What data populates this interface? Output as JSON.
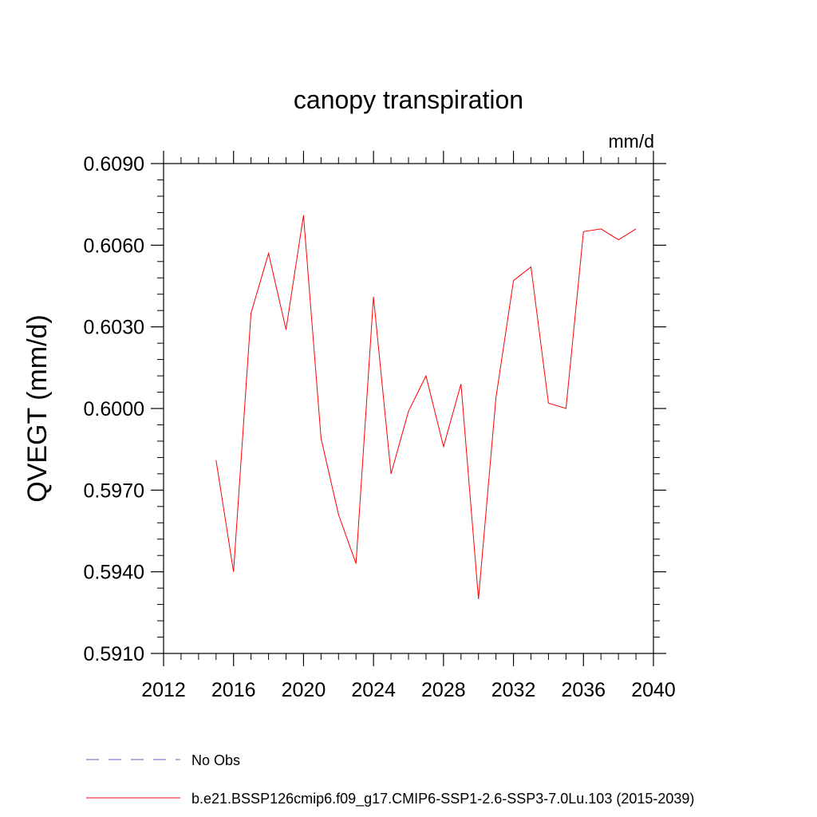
{
  "chart_data": {
    "type": "line",
    "title": "canopy transpiration",
    "units": "mm/d",
    "ylabel": "QVEGT  (mm/d)",
    "xlabel": "",
    "xlim": [
      2012,
      2040
    ],
    "ylim": [
      0.591,
      0.609
    ],
    "x_ticks": [
      2012,
      2016,
      2020,
      2024,
      2028,
      2032,
      2036,
      2040
    ],
    "x_tick_labels": [
      "2012",
      "2016",
      "2020",
      "2024",
      "2028",
      "2032",
      "2036",
      "2040"
    ],
    "y_ticks": [
      0.591,
      0.594,
      0.597,
      0.6,
      0.603,
      0.606,
      0.609
    ],
    "y_tick_labels": [
      "0.5910",
      "0.5940",
      "0.5970",
      "0.6000",
      "0.6030",
      "0.6060",
      "0.6090"
    ],
    "grid": false,
    "legend_position": "bottom",
    "legend": [
      {
        "label": "No Obs",
        "color": "#6a5acd",
        "style": "dashed"
      },
      {
        "label": "b.e21.BSSP126cmip6.f09_g17.CMIP6-SSP1-2.6-SSP3-7.0Lu.103 (2015-2039)",
        "color": "#ff0000",
        "style": "solid"
      }
    ],
    "series": [
      {
        "name": "b.e21.BSSP126cmip6.f09_g17.CMIP6-SSP1-2.6-SSP3-7.0Lu.103 (2015-2039)",
        "color": "#ff0000",
        "x": [
          2015,
          2016,
          2017,
          2018,
          2019,
          2020,
          2021,
          2022,
          2023,
          2024,
          2025,
          2026,
          2027,
          2028,
          2029,
          2030,
          2031,
          2032,
          2033,
          2034,
          2035,
          2036,
          2037,
          2038,
          2039
        ],
        "values": [
          0.5981,
          0.594,
          0.6035,
          0.6057,
          0.6029,
          0.6071,
          0.5989,
          0.5961,
          0.5943,
          0.6041,
          0.5976,
          0.5999,
          0.6012,
          0.5986,
          0.6009,
          0.593,
          0.6004,
          0.6047,
          0.6052,
          0.6002,
          0.6,
          0.6065,
          0.6066,
          0.6062,
          0.6066
        ]
      }
    ]
  }
}
